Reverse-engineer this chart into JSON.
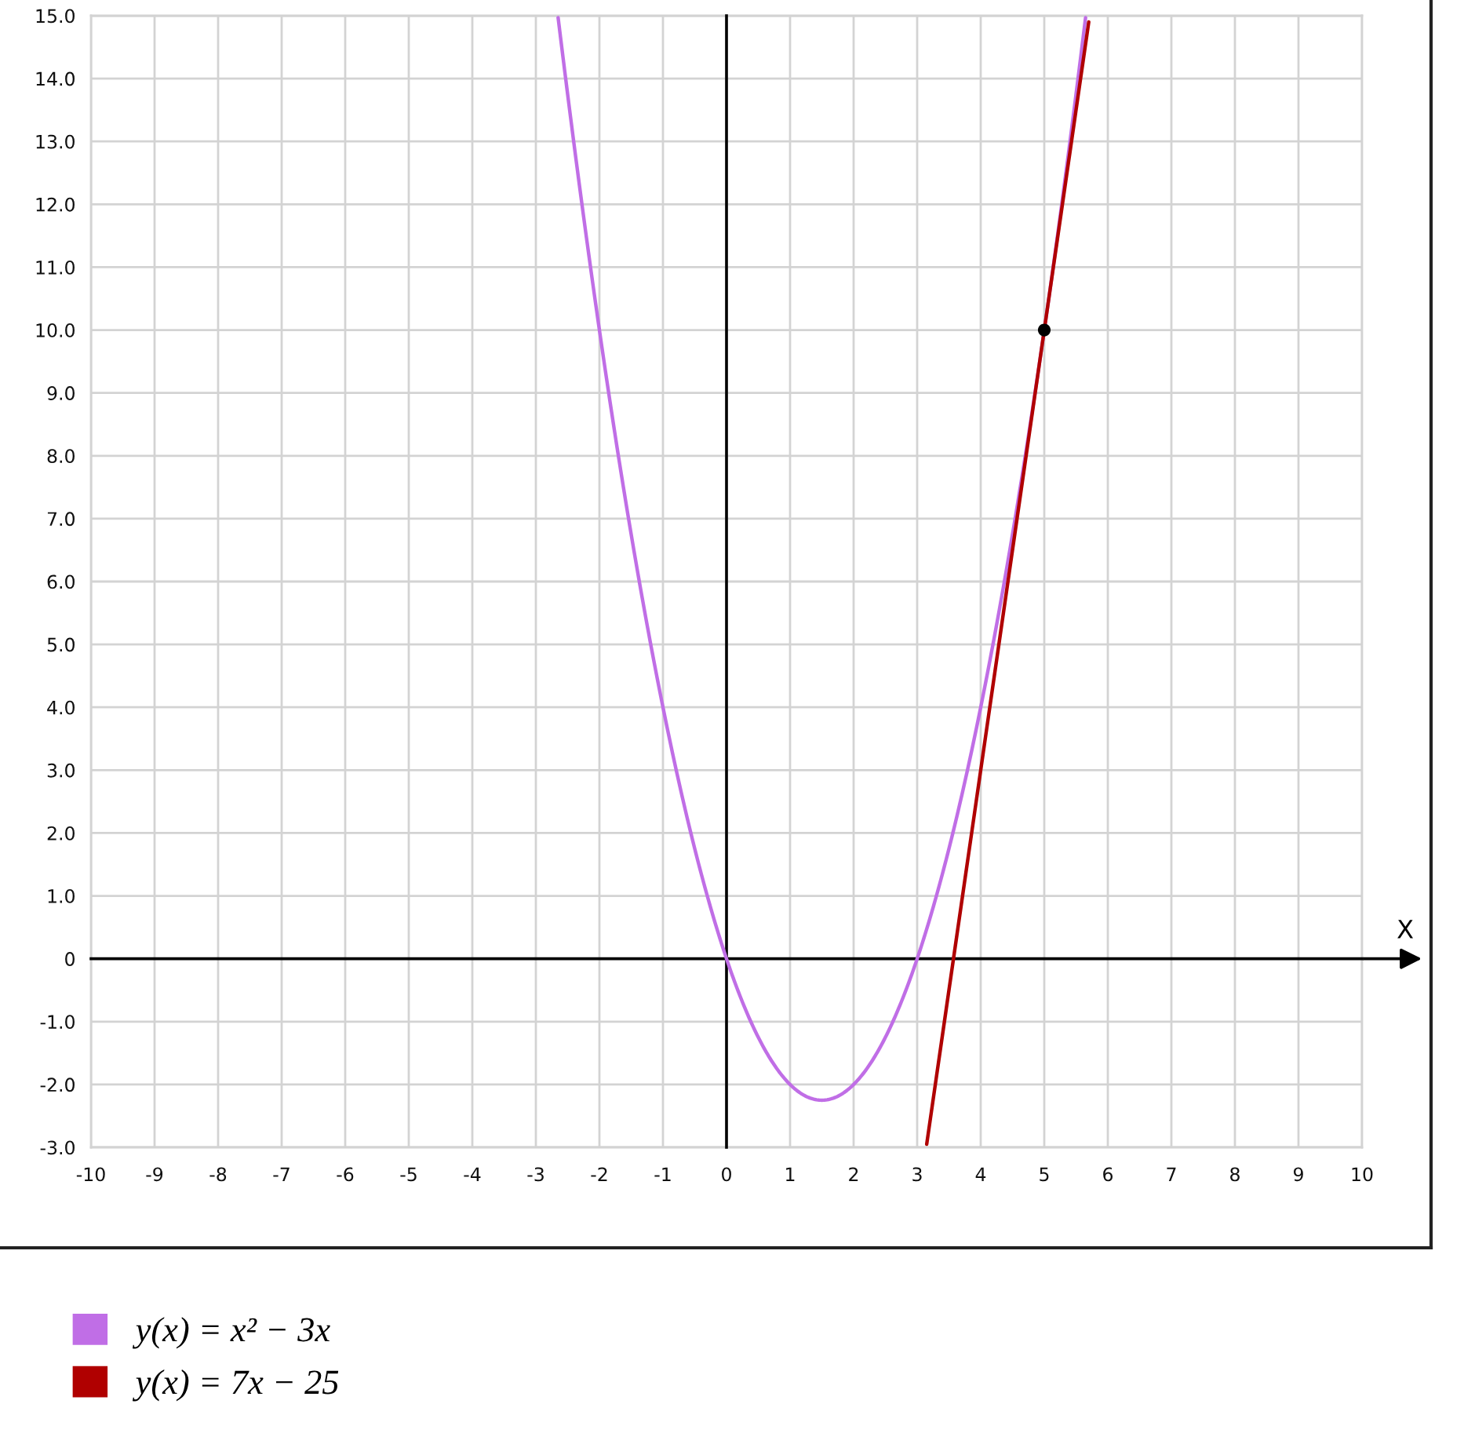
{
  "chart_data": {
    "type": "line",
    "xlabel": "X",
    "xlim": [
      -10,
      10
    ],
    "xticks": [
      -10,
      -9,
      -8,
      -7,
      -6,
      -5,
      -4,
      -3,
      -2,
      -1,
      0,
      1,
      2,
      3,
      4,
      5,
      6,
      7,
      8,
      9,
      10
    ],
    "ylim": [
      -3,
      15
    ],
    "yticks": [
      {
        "value": -3,
        "label": "-3.0"
      },
      {
        "value": -2,
        "label": "-2.0"
      },
      {
        "value": -1,
        "label": "-1.0"
      },
      0,
      {
        "value": 1,
        "label": "1.0"
      },
      {
        "value": 2,
        "label": "2.0"
      },
      {
        "value": 3,
        "label": "3.0"
      },
      {
        "value": 4,
        "label": "4.0"
      },
      {
        "value": 5,
        "label": "5.0"
      },
      {
        "value": 6,
        "label": "6.0"
      },
      {
        "value": 7,
        "label": "7.0"
      },
      {
        "value": 8,
        "label": "8.0"
      },
      {
        "value": 9,
        "label": "9.0"
      },
      {
        "value": 10,
        "label": "10.0"
      },
      {
        "value": 11,
        "label": "11.0"
      },
      {
        "value": 12,
        "label": "12.0"
      },
      {
        "value": 13,
        "label": "13.0"
      },
      {
        "value": 14,
        "label": "14.0"
      },
      {
        "value": 15,
        "label": "15.0"
      }
    ],
    "grid": true,
    "legend": "bottom left",
    "line_style": "solid",
    "series": [
      {
        "name": "y(x) = x² − 3x",
        "color": "#c06ee6",
        "x": [
          -2.65,
          -2.5,
          -2,
          -1.5,
          -1,
          -0.5,
          0,
          0.5,
          1,
          1.5,
          2,
          2.5,
          3,
          3.5,
          4,
          4.5,
          5,
          5.5,
          5.65
        ],
        "values": [
          14.97,
          13.75,
          10,
          6.75,
          4,
          1.75,
          0,
          -1.25,
          -2,
          -2.25,
          -2,
          -1.25,
          0,
          1.75,
          4,
          6.75,
          10,
          13.75,
          14.97
        ]
      },
      {
        "name": "y(x) = 7x − 25",
        "color": "#b00000",
        "x": [
          3.15,
          5,
          5.7
        ],
        "values": [
          -2.95,
          10,
          14.9
        ]
      },
      {
        "type": "scatter",
        "color": "#000000",
        "marker": "circle",
        "x": [
          5
        ],
        "values": [
          10
        ]
      }
    ]
  }
}
